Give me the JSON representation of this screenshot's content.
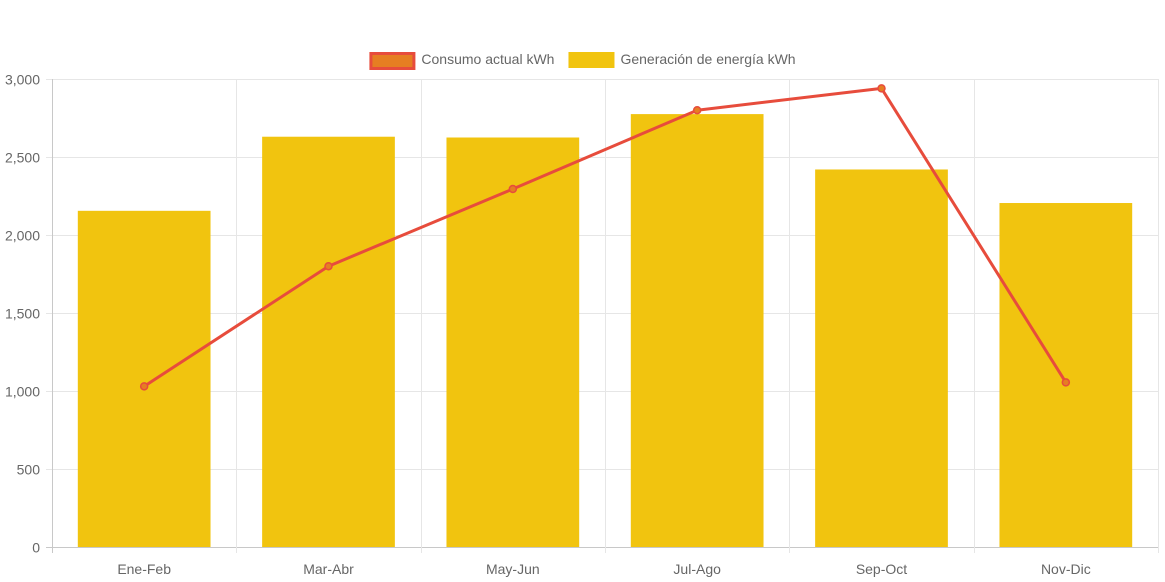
{
  "chart_data": {
    "type": "bar",
    "categories": [
      "Ene-Feb",
      "Mar-Abr",
      "May-Jun",
      "Jul-Ago",
      "Sep-Oct",
      "Nov-Dic"
    ],
    "series": [
      {
        "name": "Consumo actual kWh",
        "type": "line",
        "values": [
          1030,
          1800,
          2295,
          2800,
          2940,
          1055
        ],
        "color": "#e74c3c",
        "fill_color": "#e67e22"
      },
      {
        "name": "Generación de energía kWh",
        "type": "bar",
        "values": [
          2155,
          2630,
          2625,
          2775,
          2420,
          2205
        ],
        "color": "#f1c40f"
      }
    ],
    "ylim": [
      0,
      3000
    ],
    "yticks": [
      "0",
      "500",
      "1,000",
      "1,500",
      "2,000",
      "2,500",
      "3,000"
    ],
    "ytick_values": [
      0,
      500,
      1000,
      1500,
      2000,
      2500,
      3000
    ],
    "grid": true,
    "legend_position": "top",
    "title": "",
    "xlabel": "",
    "ylabel": ""
  }
}
